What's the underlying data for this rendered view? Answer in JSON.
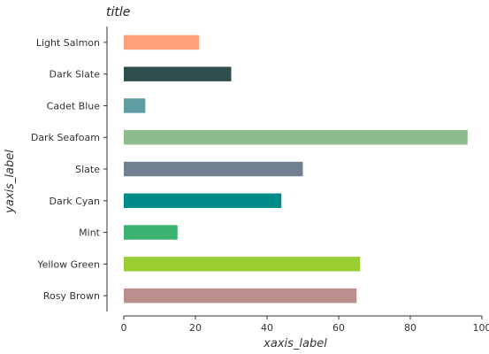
{
  "chart_data": {
    "type": "bar",
    "orientation": "horizontal",
    "title": "title",
    "xlabel": "xaxis_label",
    "ylabel": "yaxis_label",
    "xlim": [
      0,
      100
    ],
    "xticks": [
      0,
      20,
      40,
      60,
      80,
      100
    ],
    "grid": false,
    "categories": [
      "Rosy Brown",
      "Yellow Green",
      "Mint",
      "Dark Cyan",
      "Slate",
      "Dark Seafoam",
      "Cadet Blue",
      "Dark Slate",
      "Light Salmon"
    ],
    "values": [
      65,
      66,
      15,
      44,
      50,
      96,
      6,
      30,
      21
    ],
    "colors": [
      "#bc8f8f",
      "#9acd32",
      "#3cb371",
      "#008b8b",
      "#708090",
      "#8fbc8f",
      "#5f9ea0",
      "#2f4f4f",
      "#ffa07a"
    ]
  }
}
